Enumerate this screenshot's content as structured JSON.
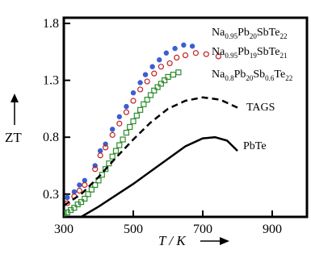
{
  "chart_data": {
    "type": "scatter",
    "xlabel": "T / K",
    "ylabel": "ZT",
    "xlim": [
      300,
      1000
    ],
    "ylim": [
      0.1,
      1.85
    ],
    "x_ticks": [
      "300",
      "500",
      "700",
      "900"
    ],
    "x_tick_values": [
      300,
      500,
      700,
      900
    ],
    "y_ticks": [
      "1.8",
      "1.3",
      "0.8",
      "0.3"
    ],
    "y_tick_values": [
      1.8,
      1.3,
      0.8,
      0.3
    ],
    "grid": false,
    "series": [
      {
        "name": "Na0.95Pb20SbTe22",
        "label_parts": [
          [
            "Na",
            ""
          ],
          [
            "0.95",
            "sub"
          ],
          [
            "Pb",
            ""
          ],
          [
            "20",
            "sub"
          ],
          [
            "SbTe",
            ""
          ],
          [
            "22",
            "sub"
          ]
        ],
        "style": "filled-circle",
        "color": "#3a5fd0",
        "points": [
          [
            310,
            0.27
          ],
          [
            330,
            0.32
          ],
          [
            345,
            0.38
          ],
          [
            360,
            0.42
          ],
          [
            390,
            0.55
          ],
          [
            405,
            0.68
          ],
          [
            420,
            0.74
          ],
          [
            440,
            0.87
          ],
          [
            460,
            0.98
          ],
          [
            480,
            1.07
          ],
          [
            500,
            1.19
          ],
          [
            520,
            1.28
          ],
          [
            535,
            1.35
          ],
          [
            555,
            1.42
          ],
          [
            575,
            1.48
          ],
          [
            595,
            1.54
          ],
          [
            620,
            1.58
          ],
          [
            645,
            1.61
          ],
          [
            670,
            1.6
          ]
        ]
      },
      {
        "name": "Na0.95Pb19SbTe21",
        "label_parts": [
          [
            "Na",
            ""
          ],
          [
            "0.95",
            "sub"
          ],
          [
            "Pb",
            ""
          ],
          [
            "19",
            "sub"
          ],
          [
            "SbTe",
            ""
          ],
          [
            "21",
            "sub"
          ]
        ],
        "style": "open-circle",
        "color": "#c02020",
        "points": [
          [
            310,
            0.22
          ],
          [
            330,
            0.28
          ],
          [
            345,
            0.33
          ],
          [
            360,
            0.38
          ],
          [
            390,
            0.52
          ],
          [
            405,
            0.64
          ],
          [
            420,
            0.71
          ],
          [
            440,
            0.82
          ],
          [
            460,
            0.92
          ],
          [
            480,
            1.02
          ],
          [
            500,
            1.12
          ],
          [
            520,
            1.22
          ],
          [
            540,
            1.29
          ],
          [
            560,
            1.36
          ],
          [
            580,
            1.42
          ],
          [
            605,
            1.45
          ],
          [
            625,
            1.5
          ],
          [
            650,
            1.52
          ],
          [
            680,
            1.54
          ],
          [
            710,
            1.53
          ],
          [
            745,
            1.51
          ]
        ]
      },
      {
        "name": "Na0.8Pb20Sb0.6Te22",
        "label_parts": [
          [
            "Na",
            ""
          ],
          [
            "0.8",
            "sub"
          ],
          [
            "Pb",
            ""
          ],
          [
            "20",
            "sub"
          ],
          [
            "Sb",
            ""
          ],
          [
            "0.6",
            "sub"
          ],
          [
            "Te",
            ""
          ],
          [
            "22",
            "sub"
          ]
        ],
        "style": "open-square",
        "color": "#2e8b2e",
        "points": [
          [
            300,
            0.13
          ],
          [
            310,
            0.14
          ],
          [
            320,
            0.16
          ],
          [
            330,
            0.18
          ],
          [
            340,
            0.21
          ],
          [
            350,
            0.23
          ],
          [
            360,
            0.26
          ],
          [
            370,
            0.3
          ],
          [
            380,
            0.34
          ],
          [
            390,
            0.38
          ],
          [
            400,
            0.42
          ],
          [
            410,
            0.47
          ],
          [
            420,
            0.52
          ],
          [
            430,
            0.57
          ],
          [
            440,
            0.63
          ],
          [
            450,
            0.68
          ],
          [
            460,
            0.73
          ],
          [
            470,
            0.78
          ],
          [
            480,
            0.84
          ],
          [
            490,
            0.89
          ],
          [
            500,
            0.94
          ],
          [
            510,
            0.99
          ],
          [
            520,
            1.04
          ],
          [
            530,
            1.09
          ],
          [
            540,
            1.13
          ],
          [
            550,
            1.17
          ],
          [
            560,
            1.21
          ],
          [
            570,
            1.24
          ],
          [
            580,
            1.27
          ],
          [
            590,
            1.3
          ],
          [
            600,
            1.33
          ],
          [
            615,
            1.35
          ],
          [
            630,
            1.37
          ]
        ]
      },
      {
        "name": "TAGS",
        "label_parts": [
          [
            "TAGS",
            ""
          ]
        ],
        "style": "dashed-line",
        "color": "#000000",
        "points": [
          [
            300,
            0.2
          ],
          [
            350,
            0.3
          ],
          [
            400,
            0.45
          ],
          [
            450,
            0.62
          ],
          [
            500,
            0.78
          ],
          [
            550,
            0.93
          ],
          [
            600,
            1.05
          ],
          [
            650,
            1.12
          ],
          [
            700,
            1.15
          ],
          [
            750,
            1.13
          ],
          [
            800,
            1.06
          ]
        ]
      },
      {
        "name": "PbTe",
        "label_parts": [
          [
            "PbTe",
            ""
          ]
        ],
        "style": "solid-line",
        "color": "#000000",
        "points": [
          [
            310,
            0.05
          ],
          [
            350,
            0.1
          ],
          [
            400,
            0.19
          ],
          [
            450,
            0.29
          ],
          [
            500,
            0.39
          ],
          [
            550,
            0.5
          ],
          [
            600,
            0.61
          ],
          [
            650,
            0.72
          ],
          [
            700,
            0.79
          ],
          [
            735,
            0.8
          ],
          [
            770,
            0.77
          ],
          [
            800,
            0.68
          ]
        ]
      }
    ]
  }
}
